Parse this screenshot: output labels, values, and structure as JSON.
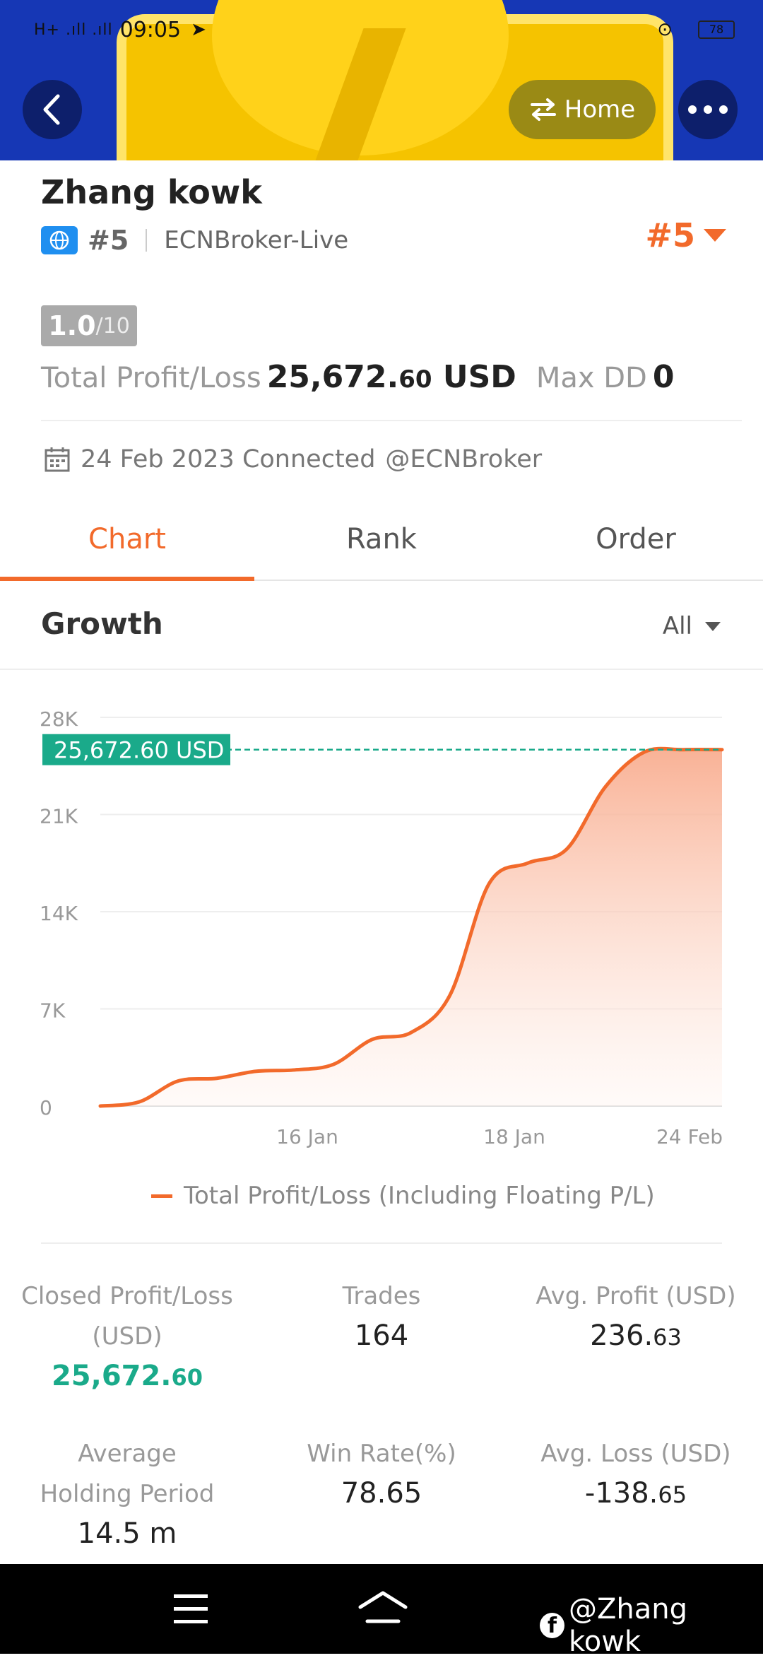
{
  "status_bar": {
    "signal": "H+ .ıll .ıll",
    "time": "09:05",
    "battery": "78"
  },
  "header": {
    "home_label": "Home"
  },
  "profile": {
    "name": "Zhang kowk",
    "rank": "#5",
    "broker": "ECNBroker-Live",
    "rank_right": "#5",
    "score": "1.0",
    "score_max": "/10",
    "total_pl_label": "Total Profit/Loss",
    "total_pl_int": "25,672.",
    "total_pl_dec": "60",
    "total_pl_unit": "USD",
    "max_dd_label": "Max DD",
    "max_dd_value": "0",
    "connected_text": "24 Feb 2023 Connected",
    "connected_handle": "@ECNBroker"
  },
  "tabs": [
    {
      "label": "Chart",
      "active": true
    },
    {
      "label": "Rank",
      "active": false
    },
    {
      "label": "Order",
      "active": false
    }
  ],
  "growth": {
    "title": "Growth",
    "filter": "All"
  },
  "chart_data": {
    "type": "area",
    "y_ticks": [
      "28K",
      "21K",
      "14K",
      "7K",
      "0"
    ],
    "y_tick_values": [
      28000,
      21000,
      14000,
      7000,
      0
    ],
    "ylim": [
      0,
      28000
    ],
    "x_tick_labels": [
      "16 Jan",
      "18 Jan",
      "24 Feb"
    ],
    "current_value_label": "25,672.60 USD",
    "current_value": 25672.6,
    "series": [
      {
        "name": "Total Profit/Loss (Including Floating P/L)",
        "color": "#f26a2b",
        "values": [
          0,
          300,
          1800,
          2000,
          2500,
          2600,
          3000,
          4800,
          5300,
          8000,
          16000,
          17500,
          18500,
          23000,
          25500,
          25672.6,
          25672.6
        ]
      }
    ]
  },
  "legend": {
    "label": "Total Profit/Loss (Including Floating P/L)"
  },
  "stats": {
    "closed_pl_label": "Closed Profit/Loss (USD)",
    "closed_pl_int": "25,672.",
    "closed_pl_dec": "60",
    "trades_label": "Trades",
    "trades_value": "164",
    "avg_profit_label": "Avg. Profit (USD)",
    "avg_profit_int": "236.",
    "avg_profit_dec": "63",
    "avg_holding_label": "Average Holding Period",
    "avg_holding_value": "14.5 m",
    "win_rate_label": "Win Rate(%)",
    "win_rate_value": "78.65",
    "avg_loss_label": "Avg. Loss (USD)",
    "avg_loss_int": "-138.",
    "avg_loss_dec": "65"
  },
  "watermark": {
    "text": "@Zhang kowk",
    "icon": "f"
  }
}
